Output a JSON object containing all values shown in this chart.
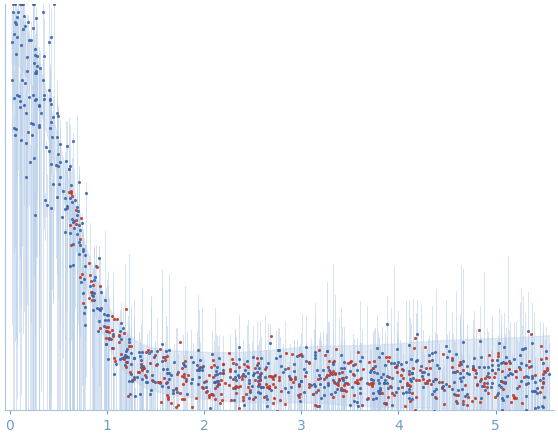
{
  "title": "",
  "xlabel": "",
  "ylabel": "",
  "xlim": [
    -0.05,
    5.6
  ],
  "ylim": [
    -0.05,
    1.15
  ],
  "x_ticks": [
    0,
    1,
    2,
    3,
    4,
    5
  ],
  "background_color": "#ffffff",
  "blue_color": "#3A65A8",
  "red_color": "#C0392B",
  "error_color": "#B8CEE8",
  "envelope_color": "#C8D8EC",
  "envelope_alpha": 0.5,
  "dot_size": 5,
  "seed_main": 42,
  "seed_red": 123,
  "seed_err": 7
}
